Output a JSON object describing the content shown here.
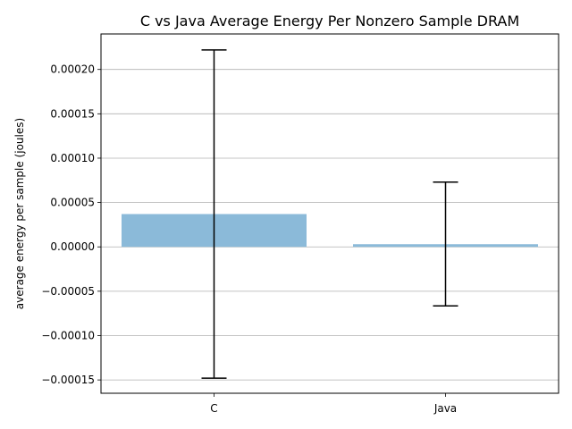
{
  "chart_data": {
    "type": "bar",
    "title": "C vs Java Average Energy Per Nonzero Sample DRAM",
    "xlabel": "",
    "ylabel": "average energy per sample (joules)",
    "categories": [
      "C",
      "Java"
    ],
    "values": [
      3.7e-05,
      3e-06
    ],
    "error_low": [
      -0.000148,
      -6.65e-05
    ],
    "error_high": [
      0.000222,
      7.3e-05
    ],
    "ylim": [
      -0.000165,
      0.00024
    ],
    "yticks": [
      -0.00015,
      -0.0001,
      -5e-05,
      0.0,
      5e-05,
      0.0001,
      0.00015,
      0.0002
    ],
    "ytick_labels": [
      "−0.00015",
      "−0.00010",
      "−0.00005",
      "0.00000",
      "0.00005",
      "0.00010",
      "0.00015",
      "0.00020"
    ],
    "grid": "y",
    "bar_color": "#8bbad9",
    "error_color": "#000000",
    "grid_color": "#b0b0b0"
  }
}
